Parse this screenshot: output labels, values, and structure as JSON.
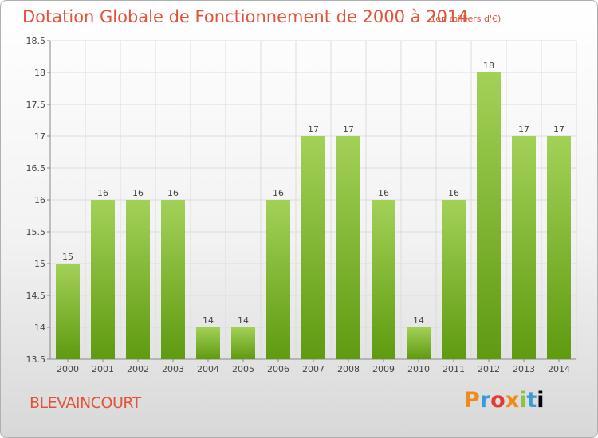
{
  "header": {
    "title": "Dotation Globale de Fonctionnement de 2000 à 2014",
    "subtitle": "(en milliers d'€)"
  },
  "footer": {
    "commune": "BLEVAINCOURT",
    "logo_text": "Proxiti"
  },
  "colors": {
    "title": "#e2533a",
    "bar_top": "#a3d158",
    "bar_bottom": "#5f9a10"
  },
  "chart_data": {
    "type": "bar",
    "title": "Dotation Globale de Fonctionnement de 2000 à 2014",
    "subtitle": "(en milliers d'€)",
    "xlabel": "",
    "ylabel": "",
    "categories": [
      "2000",
      "2001",
      "2002",
      "2003",
      "2004",
      "2005",
      "2006",
      "2007",
      "2008",
      "2009",
      "2010",
      "2011",
      "2012",
      "2013",
      "2014"
    ],
    "values": [
      15,
      16,
      16,
      16,
      14,
      14,
      16,
      17,
      17,
      16,
      14,
      16,
      18,
      17,
      17
    ],
    "data_labels": [
      "15",
      "16",
      "16",
      "16",
      "14",
      "14",
      "16",
      "17",
      "17",
      "16",
      "14",
      "16",
      "18",
      "17",
      "17"
    ],
    "ylim": [
      13.5,
      18.5
    ],
    "yticks": [
      13.5,
      14,
      14.5,
      15,
      15.5,
      16,
      16.5,
      17,
      17.5,
      18,
      18.5
    ],
    "ytick_labels": [
      "13.5",
      "14",
      "14.5",
      "15",
      "15.5",
      "16",
      "16.5",
      "17",
      "17.5",
      "18",
      "18.5"
    ],
    "grid": true,
    "legend": "none"
  }
}
